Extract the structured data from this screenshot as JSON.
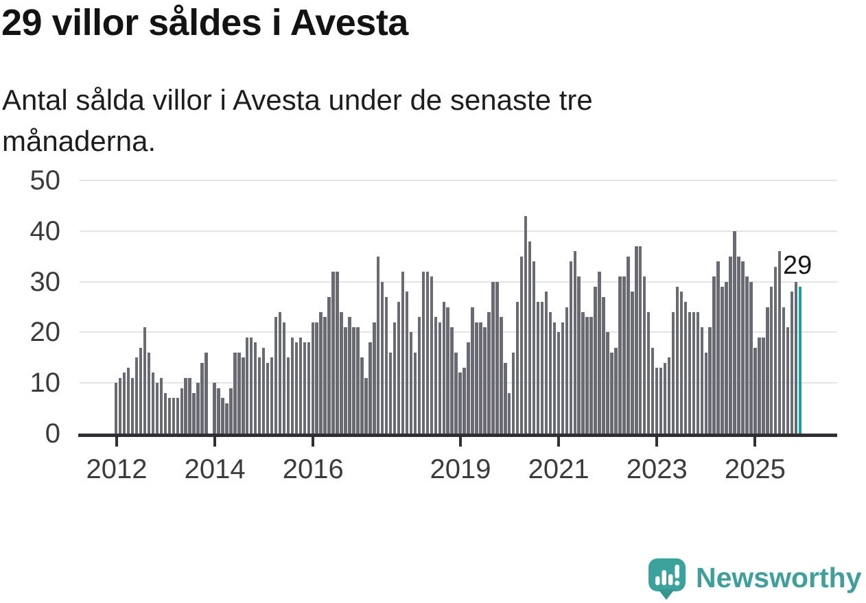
{
  "header": {
    "title": "29 villor såldes i Avesta",
    "subtitle": "Antal sålda villor i Avesta under de senaste tre månaderna."
  },
  "chart_data": {
    "type": "bar",
    "title": "29 villor såldes i Avesta",
    "subtitle": "Antal sålda villor i Avesta under de senaste tre månaderna.",
    "x_start_year": 2012,
    "x_unit": "month",
    "x_tick_years": [
      2012,
      2014,
      2016,
      2019,
      2021,
      2023,
      2025
    ],
    "y_ticks": [
      0,
      10,
      20,
      30,
      40,
      50
    ],
    "ylim": [
      0,
      50
    ],
    "grid": "horizontal",
    "legend": "none",
    "bar_color": "#6a6a72",
    "highlight_color": "#10a2a0",
    "annotation": {
      "text": "29",
      "bar_index": 167
    },
    "values": [
      10,
      11,
      12,
      13,
      11,
      15,
      17,
      21,
      16,
      12,
      10,
      11,
      8,
      7,
      7,
      7,
      9,
      11,
      11,
      8,
      10,
      14,
      16,
      0,
      10,
      9,
      7,
      6,
      9,
      16,
      16,
      15,
      19,
      19,
      18,
      15,
      17,
      14,
      15,
      23,
      24,
      22,
      15,
      19,
      18,
      19,
      18,
      18,
      22,
      22,
      24,
      23,
      27,
      32,
      32,
      24,
      21,
      23,
      21,
      21,
      15,
      11,
      18,
      22,
      35,
      30,
      27,
      16,
      22,
      26,
      32,
      28,
      20,
      16,
      23,
      32,
      32,
      31,
      23,
      22,
      26,
      25,
      21,
      16,
      12,
      13,
      18,
      25,
      22,
      22,
      21,
      24,
      30,
      30,
      23,
      14,
      8,
      16,
      26,
      35,
      43,
      38,
      34,
      26,
      26,
      28,
      24,
      22,
      20,
      22,
      25,
      34,
      36,
      31,
      24,
      23,
      23,
      29,
      32,
      27,
      20,
      16,
      17,
      31,
      31,
      35,
      28,
      37,
      37,
      31,
      24,
      17,
      13,
      13,
      14,
      15,
      24,
      29,
      28,
      26,
      24,
      24,
      24,
      21,
      16,
      21,
      31,
      34,
      29,
      30,
      35,
      40,
      35,
      34,
      31,
      30,
      17,
      19,
      19,
      25,
      29,
      33,
      36,
      25,
      21,
      28,
      30,
      29
    ]
  },
  "footer": {
    "brand": "Newsworthy",
    "brand_color": "#3f9f9a",
    "logo_icon": "bar-chart-speech-bubble-icon"
  }
}
